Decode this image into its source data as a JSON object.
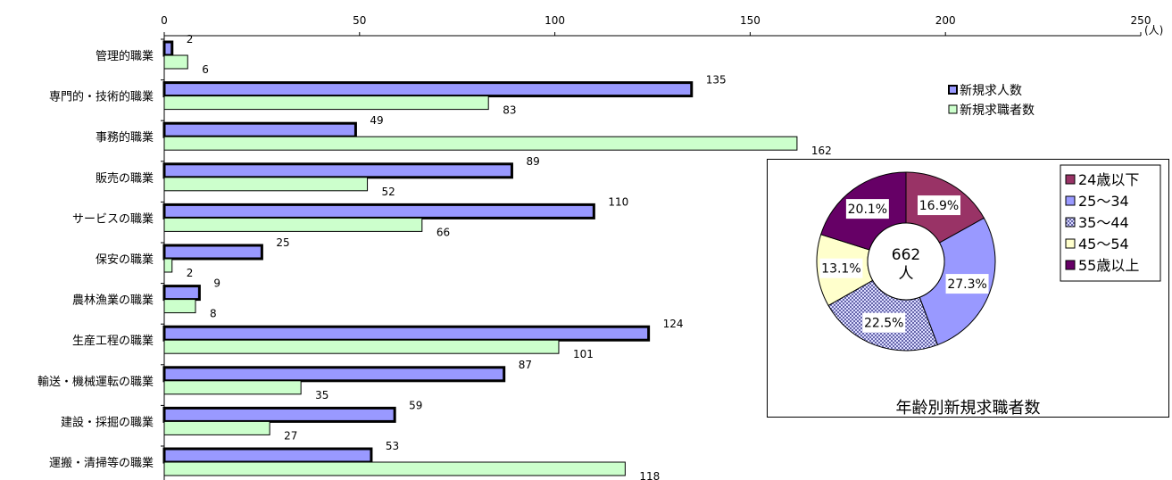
{
  "chart_data": [
    {
      "type": "bar",
      "orientation": "horizontal",
      "categories": [
        "管理的職業",
        "専門的・技術的職業",
        "事務的職業",
        "販売の職業",
        "サービスの職業",
        "保安の職業",
        "農林漁業の職業",
        "生産工程の職業",
        "輸送・機械運転の職業",
        "建設・採掘の職業",
        "運搬・清掃等の職業"
      ],
      "series": [
        {
          "name": "新規求人数",
          "color": "#9999ff",
          "values": [
            2,
            135,
            49,
            89,
            110,
            25,
            9,
            124,
            87,
            59,
            53
          ]
        },
        {
          "name": "新規求職者数",
          "color": "#ccffcc",
          "values": [
            6,
            83,
            162,
            52,
            66,
            2,
            8,
            101,
            35,
            27,
            118
          ]
        }
      ],
      "xlim": [
        0,
        250
      ],
      "xticks": [
        "0",
        "50",
        "100",
        "150",
        "200",
        "250"
      ],
      "unit": "(人)",
      "legend": "top-right"
    },
    {
      "type": "pie",
      "title": "年齢別新規求職者数",
      "center_label": [
        "662",
        "人"
      ],
      "slices": [
        {
          "label": "24歳以下",
          "value": 16.9,
          "display": "16.9%",
          "color": "#993366"
        },
        {
          "label": "25〜34",
          "value": 27.3,
          "display": "27.3%",
          "color": "#9999ff"
        },
        {
          "label": "35〜44",
          "value": 22.5,
          "display": "22.5%",
          "color": "#ccccff"
        },
        {
          "label": "45〜54",
          "value": 13.1,
          "display": "13.1%",
          "color": "#ffffcc"
        },
        {
          "label": "55歳以上",
          "value": 20.1,
          "display": "20.1%",
          "color": "#660066"
        }
      ],
      "legend": "right"
    }
  ]
}
